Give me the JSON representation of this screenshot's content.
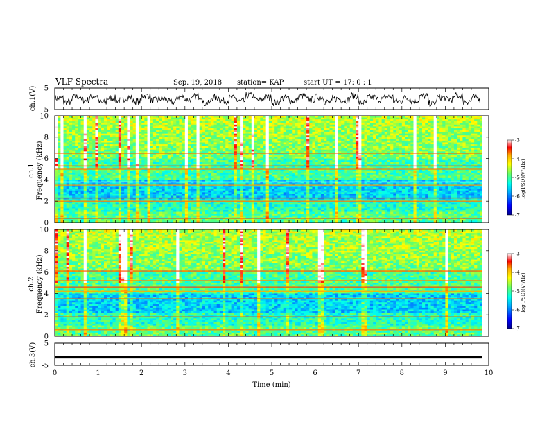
{
  "header": {
    "title": "VLF Spectra",
    "date": "Sep. 19, 2018",
    "station": "station= KAP",
    "start_time": "start  UT  =    17: 0  : 1"
  },
  "chart_data": [
    {
      "type": "line",
      "id": "ch1-waveform",
      "ylabel": "ch.1(V)",
      "ylim": [
        -5,
        5
      ],
      "yticks": [
        "5",
        "-5"
      ],
      "x": [
        0.0,
        0.2,
        0.4,
        0.6,
        0.8,
        1.0,
        1.2,
        1.4,
        1.6,
        1.8,
        2.0,
        2.2,
        2.4,
        2.6,
        2.8,
        3.0,
        3.2,
        3.4,
        3.6,
        3.8,
        4.0,
        4.2,
        4.4,
        4.6,
        4.8,
        5.0,
        5.2,
        5.4,
        5.6,
        5.8,
        6.0,
        6.2,
        6.4,
        6.6,
        6.8,
        7.0,
        7.2,
        7.4,
        7.6,
        7.8,
        8.0,
        8.2,
        8.4,
        8.6,
        8.8,
        9.0,
        9.2,
        9.4,
        9.6,
        9.8
      ],
      "values": [
        0.5,
        -2.5,
        1.5,
        -1.0,
        2.0,
        -3.0,
        0.5,
        -1.5,
        1.0,
        -2.0,
        2.5,
        -1.0,
        0.0,
        -2.5,
        1.5,
        -0.5,
        2.0,
        -3.5,
        1.0,
        -1.5,
        0.5,
        -2.0,
        2.5,
        -1.0,
        1.0,
        -3.0,
        0.5,
        -1.5,
        2.0,
        -0.5,
        1.5,
        -2.5,
        0.0,
        -1.0,
        2.5,
        -3.0,
        1.0,
        -0.5,
        1.5,
        -2.0,
        0.5,
        -1.5,
        2.0,
        -3.5,
        1.0,
        -0.5,
        2.5,
        -2.0,
        1.0,
        -1.0
      ]
    },
    {
      "type": "heatmap",
      "id": "ch1-spectrogram",
      "ylabel": "ch.1",
      "ylabel2": "Frequency (kHz)",
      "ylim": [
        0,
        10
      ],
      "yticks": [
        "0",
        "2",
        "4",
        "6",
        "8",
        "10"
      ],
      "colorbar": {
        "min": -7,
        "max": -3,
        "ticks": [
          "-3",
          "-4",
          "-5",
          "-6",
          "-7"
        ],
        "label": "log(PSD)(V²/Hz)"
      }
    },
    {
      "type": "heatmap",
      "id": "ch2-spectrogram",
      "ylabel": "ch.2",
      "ylabel2": "Frequency (kHz)",
      "ylim": [
        0,
        10
      ],
      "yticks": [
        "0",
        "2",
        "4",
        "6",
        "8",
        "10"
      ],
      "colorbar": {
        "min": -7,
        "max": -3,
        "ticks": [
          "-3",
          "-4",
          "-5",
          "-6",
          "-7"
        ],
        "label": "log(PSD)(V²/Hz)"
      }
    },
    {
      "type": "line",
      "id": "ch3-waveform",
      "ylabel": "ch.3(V)",
      "ylim": [
        -5,
        5
      ],
      "yticks": [
        "5",
        "-5"
      ],
      "x": [
        0,
        9.85
      ],
      "values": [
        -1.3,
        -1.3
      ]
    }
  ],
  "xaxis": {
    "label": "Time (min)",
    "ticks": [
      "0",
      "1",
      "2",
      "3",
      "4",
      "5",
      "6",
      "7",
      "8",
      "9",
      "10"
    ],
    "xlim": [
      0,
      10
    ]
  },
  "colors": {
    "waveform": "#000000",
    "colormap": [
      "#00008f",
      "#0000ff",
      "#00aaff",
      "#00ffee",
      "#66ff66",
      "#ffff00",
      "#ffaa00",
      "#ff0000",
      "#ffffff"
    ]
  }
}
